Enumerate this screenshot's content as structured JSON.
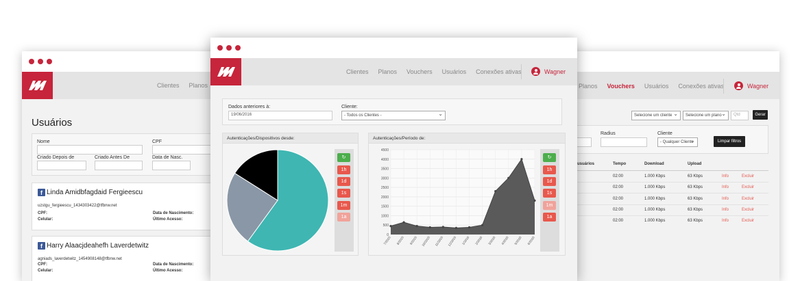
{
  "left_window": {
    "nav": [
      "Clientes",
      "Planos"
    ],
    "title": "Usuários",
    "filters": {
      "nome": "Nome",
      "cpf": "CPF",
      "criado_depois": "Criado Depois de",
      "criado_antes": "Criado Antes De",
      "data_nasc": "Data de Nasc."
    },
    "users": [
      {
        "name": "Linda Amidbfagdaid Fergieescu",
        "login": "uzstgu_fergieescu_1434303422@tfbnw.net",
        "cpf": "CPF:",
        "celular": "Celular:",
        "nascimento": "Data de Nascimento:",
        "ultimo": "Último Acesso:"
      },
      {
        "name": "Harry Alaacjdeahefh Laverdetwitz",
        "login": "agniads_laverdetwitz_1454908148@tfbnw.net",
        "cpf": "CPF:",
        "celular": "Celular:",
        "nascimento": "Data de Nascimento:",
        "ultimo": "Último Acesso:"
      }
    ]
  },
  "right_window": {
    "nav": [
      "Planos",
      "Vouchers",
      "Usuários",
      "Conexões ativas"
    ],
    "active_nav": "Vouchers",
    "user_name": "Wagner",
    "top_selects": [
      "Selecione um cliente",
      "Selecione um plano"
    ],
    "qty_placeholder": "Qtd",
    "gerar": "Gerar",
    "radius_label": "Radius",
    "cliente_label": "Cliente",
    "cliente_select": "- Qualquer Cliente",
    "limpar": "Limpar filtros",
    "table": {
      "headers": [
        "usuários",
        "Tempo",
        "Download",
        "Upload"
      ],
      "rows": [
        {
          "tempo": "02:00",
          "download": "1.000 Kbps",
          "upload": "63 Kbps",
          "info": "Info",
          "excluir": "Excluir"
        },
        {
          "tempo": "02:00",
          "download": "1.000 Kbps",
          "upload": "63 Kbps",
          "info": "Info",
          "excluir": "Excluir"
        },
        {
          "tempo": "02:00",
          "download": "1.000 Kbps",
          "upload": "63 Kbps",
          "info": "Info",
          "excluir": "Excluir"
        },
        {
          "tempo": "02:00",
          "download": "1.000 Kbps",
          "upload": "63 Kbps",
          "info": "Info",
          "excluir": "Excluir"
        },
        {
          "tempo": "02:00",
          "download": "1.000 Kbps",
          "upload": "63 Kbps",
          "info": "Info",
          "excluir": "Excluir"
        }
      ]
    }
  },
  "main_window": {
    "nav": [
      "Clientes",
      "Planos",
      "Vouchers",
      "Usuários",
      "Conexões ativas"
    ],
    "user_name": "Wagner",
    "dados_label": "Dados anteriores à:",
    "dados_value": "19/06/2016",
    "cliente_label": "Cliente:",
    "cliente_value": "- Todos os Clientes -",
    "pie_title": "Autenticações/Dispositivos desde:",
    "area_title": "Autenticações/Período de:",
    "time_buttons": [
      "1h",
      "1d",
      "1s",
      "1m",
      "1a"
    ],
    "colors": {
      "brand": "#c6253b",
      "teal": "#3fb6b2",
      "slate": "#8a97a6",
      "black": "#000000",
      "area": "#5a5a5a"
    }
  },
  "chart_data": [
    {
      "type": "pie",
      "title": "Autenticações/Dispositivos desde:",
      "slices": [
        {
          "value": 0.6,
          "color": "#3fb6b2"
        },
        {
          "value": 0.24,
          "color": "#8a97a6"
        },
        {
          "value": 0.16,
          "color": "#000000"
        }
      ]
    },
    {
      "type": "area",
      "title": "Autenticações/Período de:",
      "x": [
        "7/2015",
        "8/2015",
        "9/2015",
        "10/2015",
        "11/2015",
        "12/2015",
        "1/2016",
        "2/2016",
        "3/2016",
        "4/2016",
        "5/2016",
        "6/2016"
      ],
      "values": [
        450,
        650,
        450,
        380,
        400,
        350,
        380,
        500,
        2300,
        3000,
        4000,
        1800
      ],
      "ylim": [
        0,
        4500
      ],
      "yticks": [
        0,
        500,
        1000,
        1500,
        2000,
        2500,
        3000,
        3500,
        4000,
        4500
      ],
      "grid": true
    }
  ]
}
